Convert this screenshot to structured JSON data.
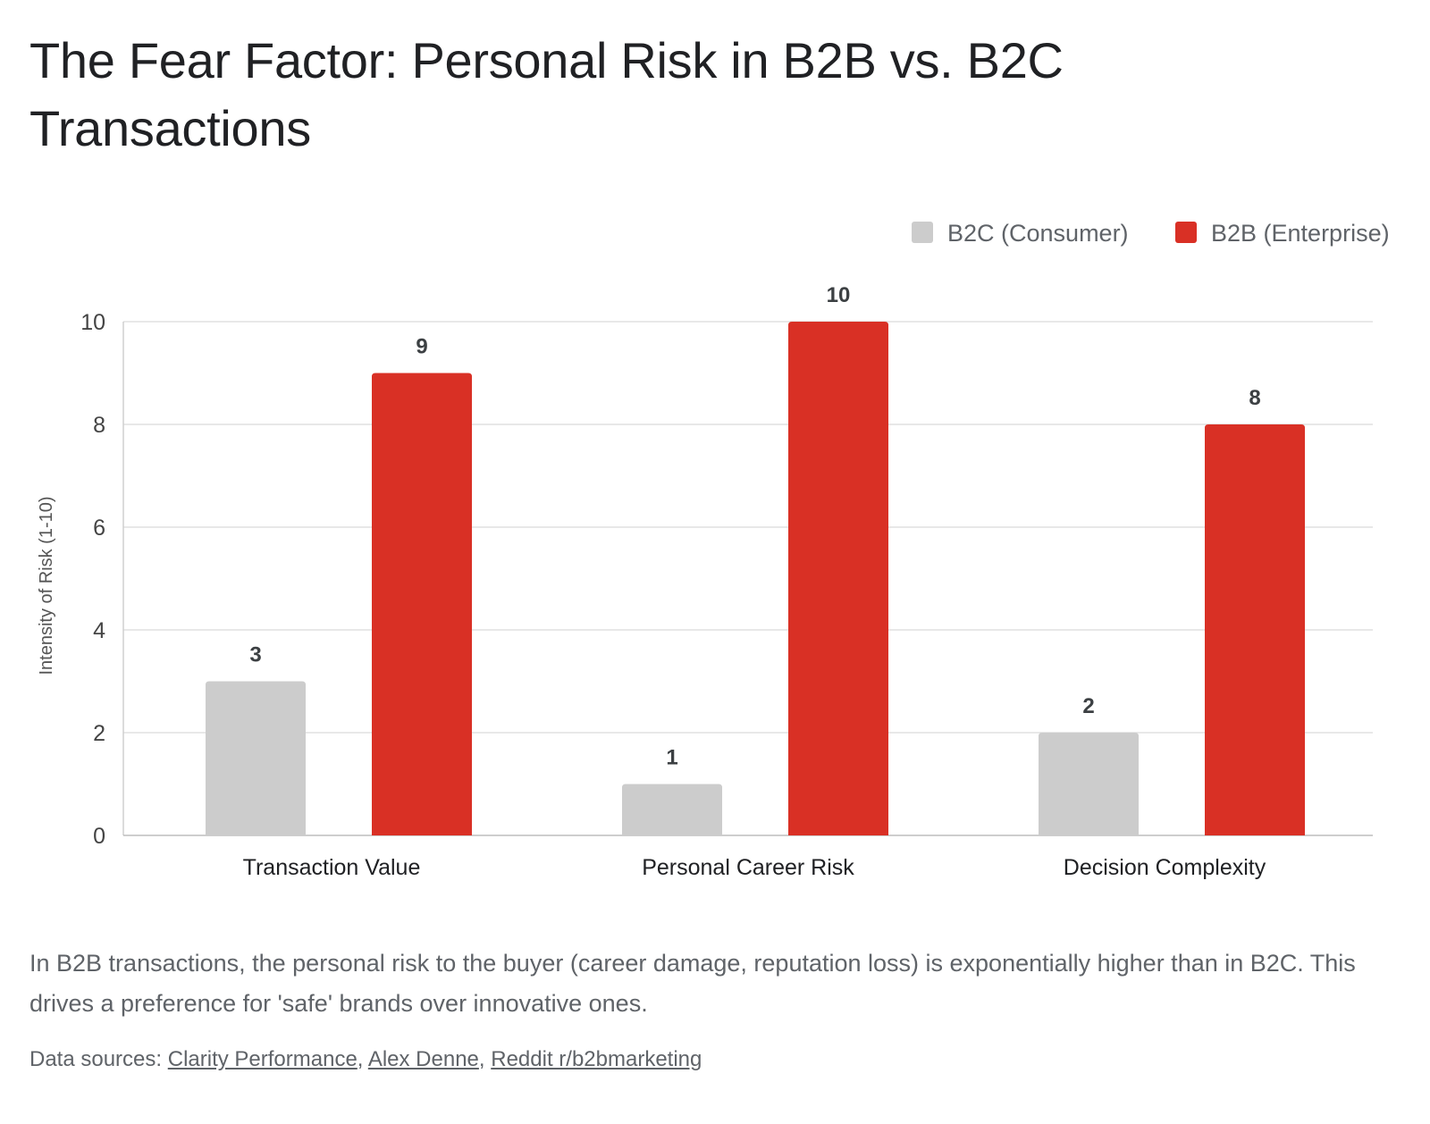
{
  "title": "The Fear Factor: Personal Risk in B2B vs. B2C Transactions",
  "description": "In B2B transactions, the personal risk to the buyer (career damage, reputation loss) is exponentially higher than in B2C. This drives a preference for 'safe' brands over innovative ones.",
  "sources": {
    "prefix": "Data sources: ",
    "separator": ", ",
    "links": [
      "Clarity Performance",
      "Alex Denne",
      "Reddit r/b2bmarketing"
    ]
  },
  "chart_data": {
    "type": "bar",
    "title": "The Fear Factor: Personal Risk in B2B vs. B2C Transactions",
    "categories": [
      "Transaction Value",
      "Personal Career Risk",
      "Decision Complexity"
    ],
    "series": [
      {
        "name": "B2C (Consumer)",
        "color": "#cccccc",
        "values": [
          3,
          1,
          2
        ]
      },
      {
        "name": "B2B (Enterprise)",
        "color": "#d93025",
        "values": [
          9,
          10,
          8
        ]
      }
    ],
    "xlabel": "",
    "ylabel": "Intensity of Risk (1-10)",
    "ylim": [
      0,
      10
    ],
    "yticks": [
      0,
      2,
      4,
      6,
      8,
      10
    ],
    "grid": true,
    "legend": "top-right",
    "data_labels": true
  }
}
